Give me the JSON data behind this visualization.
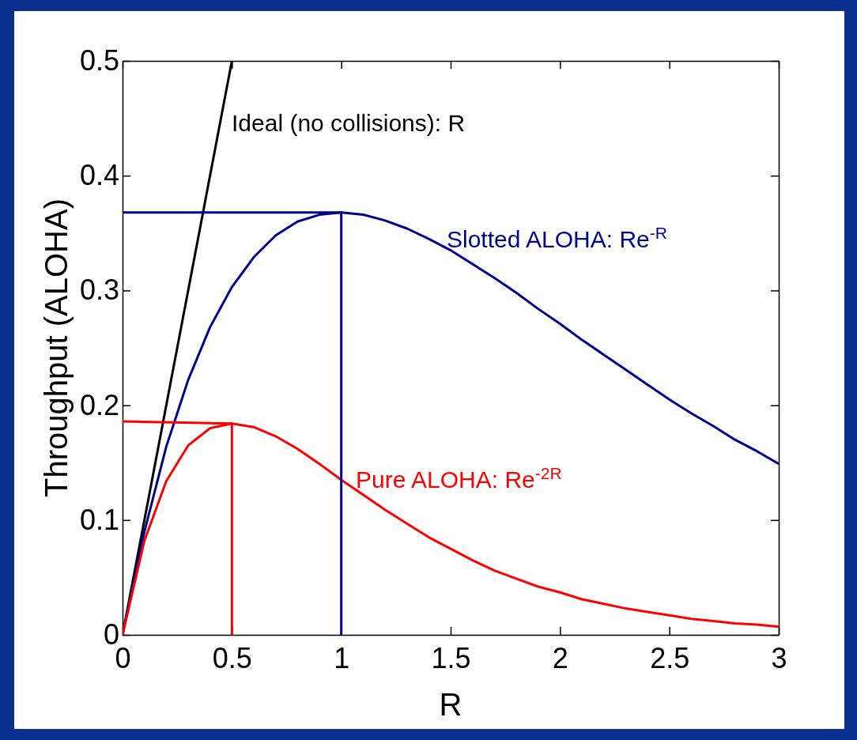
{
  "chart_data": {
    "type": "line",
    "xlabel": "R",
    "ylabel": "Throughput (ALOHA)",
    "xlim": [
      0,
      3
    ],
    "ylim": [
      0,
      0.5
    ],
    "xticks": [
      0,
      0.5,
      1,
      1.5,
      2,
      2.5,
      3
    ],
    "yticks": [
      0,
      0.1,
      0.2,
      0.3,
      0.4,
      0.5
    ],
    "grid": false,
    "marker": "none",
    "line_style": "solid",
    "series": [
      {
        "color": "#000000",
        "x": [
          0,
          0.5
        ],
        "values": [
          0,
          0.5
        ]
      },
      {
        "color": "#00008f",
        "x": [
          0,
          0.1,
          0.2,
          0.3,
          0.4,
          0.5,
          0.6,
          0.7,
          0.8,
          0.9,
          1,
          1.1,
          1.2,
          1.3,
          1.4,
          1.5,
          1.6,
          1.7,
          1.8,
          1.9,
          2,
          2.1,
          2.2,
          2.3,
          2.4,
          2.5,
          2.6,
          2.7,
          2.8,
          2.9,
          3
        ],
        "values": [
          0,
          0.09,
          0.164,
          0.222,
          0.268,
          0.303,
          0.329,
          0.348,
          0.36,
          0.366,
          0.368,
          0.366,
          0.361,
          0.354,
          0.345,
          0.335,
          0.323,
          0.311,
          0.298,
          0.284,
          0.271,
          0.257,
          0.244,
          0.231,
          0.218,
          0.205,
          0.193,
          0.182,
          0.17,
          0.16,
          0.149
        ]
      },
      {
        "color": "#ff0000",
        "x": [
          0,
          0.1,
          0.2,
          0.3,
          0.4,
          0.5,
          0.6,
          0.7,
          0.8,
          0.9,
          1,
          1.1,
          1.2,
          1.3,
          1.4,
          1.5,
          1.6,
          1.7,
          1.8,
          1.9,
          2,
          2.1,
          2.2,
          2.3,
          2.4,
          2.5,
          2.6,
          2.7,
          2.8,
          2.9,
          3
        ],
        "values": [
          0,
          0.082,
          0.134,
          0.165,
          0.18,
          0.184,
          0.181,
          0.173,
          0.162,
          0.149,
          0.135,
          0.122,
          0.109,
          0.097,
          0.085,
          0.075,
          0.065,
          0.056,
          0.049,
          0.042,
          0.037,
          0.031,
          0.027,
          0.023,
          0.02,
          0.017,
          0.014,
          0.012,
          0.01,
          0.009,
          0.007
        ]
      },
      {
        "color": "#00008f",
        "x": [
          0,
          1,
          1
        ],
        "values": [
          0.368,
          0.368,
          0
        ]
      },
      {
        "color": "#ff0000",
        "x": [
          0,
          0.5,
          0.5
        ],
        "values": [
          0.186,
          0.184,
          0
        ]
      }
    ],
    "annotations": [
      "Ideal (no collisions): R",
      "Slotted ALOHA: Re$^{-R}$",
      "Pure ALOHA: Re$^{-2R}$"
    ]
  }
}
